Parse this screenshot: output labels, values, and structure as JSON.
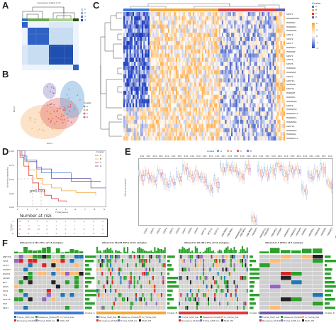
{
  "panels": {
    "a": "A",
    "b": "B",
    "c": "C",
    "d": "D",
    "e": "E",
    "f": "F"
  },
  "panel_a": {
    "title": "consensus matrix k=4",
    "legend": [
      "1",
      "2",
      "3",
      "4"
    ],
    "colors": {
      "legend": [
        "#d7e6f5",
        "#8fb9e4",
        "#4a84d1",
        "#1f4fb0"
      ]
    }
  },
  "panel_b": {
    "xlabel": "Dim1",
    "ylabel": "Dim2",
    "legend_title": "Cluster",
    "legend": [
      "A",
      "B",
      "C",
      "D"
    ],
    "colors": {
      "A": "#6fa8dc",
      "B": "#f6b26b",
      "C": "#e06666",
      "D": "#8e7cc3"
    }
  },
  "panel_c": {
    "legend_title": "Cluster",
    "legend_items": [
      "A",
      "B",
      "C",
      "D"
    ],
    "scale": [
      "2",
      "1",
      "0",
      "-1",
      "-2"
    ],
    "genes": [
      "SRSF3",
      "HNRNPA2B1",
      "HNRNPC",
      "HNRNPA1",
      "HNRNPH1",
      "SRSF1",
      "SRSF2",
      "SRSF7",
      "HNRNPU",
      "HNRNPK",
      "SRSF4",
      "SRSF5",
      "SRSF6",
      "HNRNPD",
      "HNRNPM",
      "SRSF9",
      "SRSF10",
      "HNRNPR",
      "SRSF11",
      "HNRNPF",
      "HNRNPL",
      "HNRNPAB",
      "SRSF8",
      "HNRNPH2",
      "HNRNPUL1",
      "HNRNPA3",
      "HNRNPDL",
      "SRSF12",
      "HNRNPA0",
      "HNRNPLL",
      "HNRNPCL1"
    ],
    "colors": {
      "A": "#3c78d8",
      "B": "#f1a73c",
      "C": "#e0393b",
      "D": "#6a5aa8"
    }
  },
  "panel_d": {
    "ylabel": "Survival probability",
    "xlabel": "Time(years)",
    "pvalue": "p=0.027",
    "legend_title": "Cluster",
    "legend": [
      "A",
      "B",
      "C",
      "D"
    ],
    "yticks": [
      "1.00",
      "0.75",
      "0.50",
      "0.25",
      "0.00"
    ],
    "xticks": [
      "0",
      "1",
      "2",
      "3",
      "4",
      "5",
      "6",
      "7",
      "8",
      "9"
    ],
    "risk_title": "Number at risk",
    "risk_ylabel": "Cluster",
    "risk_rows": [
      {
        "label": "A",
        "values": [
          "10",
          "6",
          "3",
          "2",
          "1",
          "1",
          "1",
          "0",
          "0",
          "0"
        ]
      },
      {
        "label": "B",
        "values": [
          "36",
          "22",
          "13",
          "8",
          "4",
          "2",
          "1",
          "1",
          "0",
          "0"
        ]
      },
      {
        "label": "C",
        "values": [
          "43",
          "25",
          "12",
          "6",
          "3",
          "1",
          "1",
          "0",
          "0",
          "0"
        ]
      },
      {
        "label": "D",
        "values": [
          "6",
          "4",
          "3",
          "2",
          "2",
          "1",
          "1",
          "1",
          "0",
          "0"
        ]
      }
    ],
    "colors": {
      "A": "#3c78d8",
      "B": "#f1a73c",
      "C": "#e0393b",
      "D": "#6a5aa8"
    }
  },
  "panel_e": {
    "ylabel": "Gene expression",
    "legend_title": "Cluster",
    "legend": [
      "A",
      "B",
      "C",
      "D"
    ],
    "sig": "***",
    "genes": [
      "SRSF1",
      "SRSF2",
      "SRSF3",
      "SRSF4",
      "SRSF5",
      "SRSF6",
      "SRSF7",
      "SRSF8",
      "SRSF9",
      "SRSF10",
      "SRSF11",
      "SRSF12",
      "HNRNPA0",
      "HNRNPA1",
      "HNRNPA2B1",
      "HNRNPA3",
      "HNRNPAB",
      "HNRNPC",
      "HNRNPCL1",
      "HNRNPD",
      "HNRNPDL",
      "HNRNPF",
      "HNRNPH1",
      "HNRNPH2",
      "HNRNPK",
      "HNRNPL",
      "HNRNPLL",
      "HNRNPM",
      "HNRNPR",
      "HNRNPU",
      "HNRNPUL1"
    ],
    "colors": {
      "A": "#6fa8dc",
      "B": "#f6b26b",
      "C": "#e06666",
      "D": "#8e7cc3"
    }
  },
  "panel_f": {
    "blocks": [
      {
        "title": "Altered in 8 (53.33%) of 15 samples.",
        "cluster": "Cluster A",
        "color": "#3c78d8"
      },
      {
        "title": "Altered in 36 (87.80%) of 41 samples.",
        "cluster": "Cluster B",
        "color": "#f1a73c"
      },
      {
        "title": "Altered in 29 (65.12%) of 43 samples.",
        "cluster": "Cluster C",
        "color": "#e0393b"
      },
      {
        "title": "Altered in 3 (50%) of 6 samples.",
        "cluster": "Cluster D",
        "color": "#6a5aa8"
      }
    ],
    "genes_a": [
      "ZNF709",
      "TP53",
      "SLIT3",
      "CSMD3",
      "RUNX1",
      "LRP1B",
      "NF1",
      "KRAS",
      "FAT4",
      "TTN",
      "MUC16",
      "DST",
      "PKD1"
    ],
    "genes_b": [
      "TP53",
      "FAT3",
      "CSMD3",
      "LRP1B",
      "RYR2",
      "USH2A",
      "MUC16",
      "NF1",
      "FLG",
      "FAT4",
      "ZFHX4",
      "TTN",
      "OBSCN"
    ],
    "genes_c": [
      "ZNF709",
      "TP53",
      "KMT2D",
      "PIK3CA",
      "NF1",
      "CSMD3",
      "RYR2",
      "TTN",
      "LRP1B",
      "FAT4",
      "MUC16",
      "DNAH5",
      "PCLO"
    ],
    "genes_d": [
      "ZNF709",
      "TP53",
      "SLIT3",
      "CSMD3",
      "KRAS",
      "NRAS",
      "RUNX1",
      "TTN",
      "LRP1B",
      "FAT4",
      "MUC16",
      "DST",
      "PKD1"
    ],
    "legend_items": [
      "Frame_Shift_Del",
      "Missense_Mutation",
      "In_Frame_Del",
      "Nonsense_Mutation",
      "Frame_Shift_Ins",
      "Multi_Hit"
    ],
    "colors": {
      "Missense_Mutation": "#2ca02c",
      "Nonsense_Mutation": "#d62728",
      "Frame_Shift_Del": "#1f77b4",
      "Frame_Shift_Ins": "#9467bd",
      "In_Frame_Del": "#ffbb78",
      "Multi_Hit": "#222222"
    }
  }
}
